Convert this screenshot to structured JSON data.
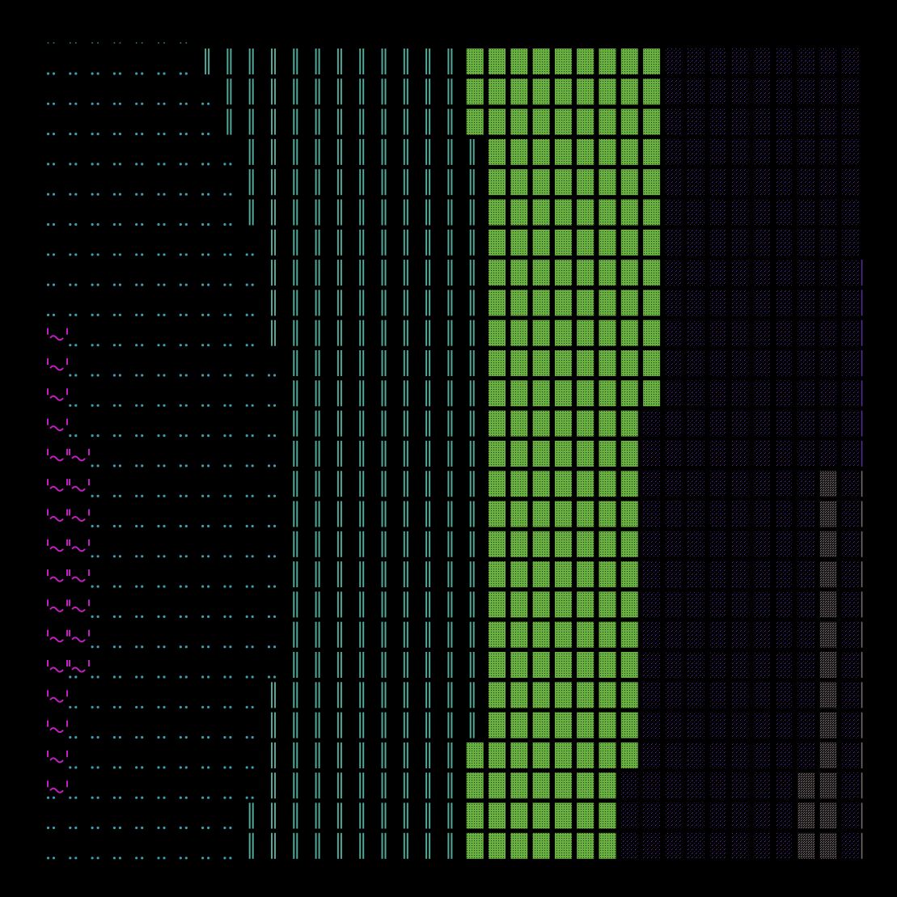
{
  "scene": {
    "description_free": true,
    "background_color": "#000000",
    "rows": 27,
    "columns": 37,
    "zones": [
      {
        "name": "dots",
        "glyph": "dot-pair",
        "color": "#3a9fb0",
        "start_col_per_row": [
          0,
          0,
          0,
          0,
          0,
          0,
          0,
          0,
          0,
          1,
          1,
          1,
          1,
          2,
          2,
          2,
          2,
          2,
          2,
          2,
          1,
          1,
          1,
          1,
          0,
          0,
          0
        ],
        "end_col_per_row": [
          6,
          7,
          7,
          8,
          8,
          8,
          9,
          9,
          9,
          9,
          10,
          10,
          10,
          10,
          10,
          10,
          10,
          10,
          10,
          10,
          10,
          9,
          9,
          9,
          9,
          8,
          8
        ]
      },
      {
        "name": "double-bars",
        "glyph": "double-vertical-bar",
        "color": "#4fa898",
        "end_col_per_row": [
          18,
          18,
          18,
          19,
          19,
          19,
          19,
          19,
          19,
          19,
          19,
          19,
          19,
          19,
          19,
          19,
          19,
          19,
          19,
          19,
          19,
          19,
          19,
          18,
          18,
          18,
          18
        ]
      },
      {
        "name": "green-blocks",
        "glyph": "dotted-block",
        "color": "#6ab040",
        "end_col_per_row": [
          27,
          27,
          27,
          27,
          27,
          27,
          27,
          27,
          27,
          27,
          27,
          27,
          26,
          26,
          26,
          26,
          26,
          26,
          26,
          26,
          26,
          26,
          26,
          26,
          25,
          25,
          25
        ]
      },
      {
        "name": "purple-dots",
        "glyph": "sparse-dots",
        "color": "#5a2ea0",
        "end_col_per_row": [
          36,
          36,
          36,
          36,
          36,
          36,
          36,
          36,
          36,
          36,
          36,
          36,
          36,
          36,
          36,
          36,
          36,
          36,
          36,
          36,
          36,
          36,
          36,
          36,
          36,
          36,
          36
        ]
      },
      {
        "name": "grey-blocks",
        "glyph": "grey-dotted-block",
        "color": "#7a7070",
        "cells": [
          [
            14,
            35
          ],
          [
            15,
            35
          ],
          [
            16,
            35
          ],
          [
            17,
            35
          ],
          [
            18,
            35
          ],
          [
            19,
            35
          ],
          [
            20,
            35
          ],
          [
            21,
            35
          ],
          [
            22,
            35
          ],
          [
            23,
            35
          ],
          [
            24,
            34
          ],
          [
            24,
            35
          ],
          [
            25,
            34
          ],
          [
            25,
            35
          ],
          [
            26,
            34
          ],
          [
            26,
            35
          ]
        ]
      },
      {
        "name": "magenta-faces",
        "glyph": "face",
        "color": "#c21fc2",
        "rows_with_one_face": [
          9,
          10,
          11,
          12,
          21,
          22,
          23,
          24
        ],
        "rows_with_two_faces": [
          13,
          14,
          15,
          16,
          17,
          18,
          19,
          20
        ]
      }
    ]
  }
}
